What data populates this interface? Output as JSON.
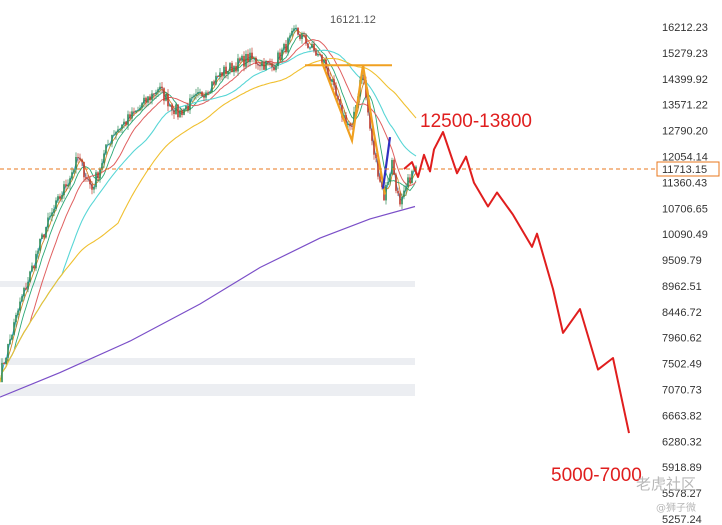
{
  "chart_data": {
    "type": "line",
    "title": "",
    "xlabel": "",
    "ylabel": "",
    "y_axis_side": "right",
    "y_scale": "log",
    "ylim": [
      5150,
      16700
    ],
    "y_ticks": [
      16212.23,
      15279.23,
      14399.92,
      13571.22,
      12790.2,
      12054.14,
      11360.43,
      10706.65,
      10090.49,
      9509.79,
      8962.51,
      8446.72,
      7960.62,
      7502.49,
      7070.73,
      6663.82,
      6280.32,
      5918.89,
      5578.27,
      5257.24
    ],
    "current_price": {
      "value": 11713.15,
      "label": "11713.15",
      "color": "#e8771c"
    },
    "peak_label": "16121.12",
    "colors": {
      "candle_up": "#2e8b57",
      "candle_down": "#c0392b",
      "ma_fast": "#1f3fbf",
      "ma_5": "#2f9fdf",
      "ma_10": "#d08a2a",
      "ma_20": "#2aa876",
      "ma_30": "#e06060",
      "ma_60": "#58d6d6",
      "ma_120": "#f0c030",
      "ma_250": "#7b4fc8",
      "projection": "#e01e1e",
      "pattern": "#f0a020",
      "pattern_accent": "#3030c0"
    },
    "annotations": [
      {
        "id": "target-high",
        "text": "12500-13800",
        "color": "#e01e1e"
      },
      {
        "id": "target-low",
        "text": "5000-7000",
        "color": "#e01e1e"
      }
    ],
    "projection_path": [
      11713,
      11900,
      11500,
      12100,
      11650,
      12250,
      12750,
      11600,
      12050,
      11350,
      10750,
      11100,
      10550,
      9800,
      10100,
      8900,
      8050,
      8500,
      7400,
      7600,
      6400
    ],
    "pattern_path": [
      14950,
      12500,
      14850,
      12700,
      11050
    ],
    "pattern_top": 14850,
    "watermark": "老虎社区",
    "watermark_user": "@狮子微"
  }
}
